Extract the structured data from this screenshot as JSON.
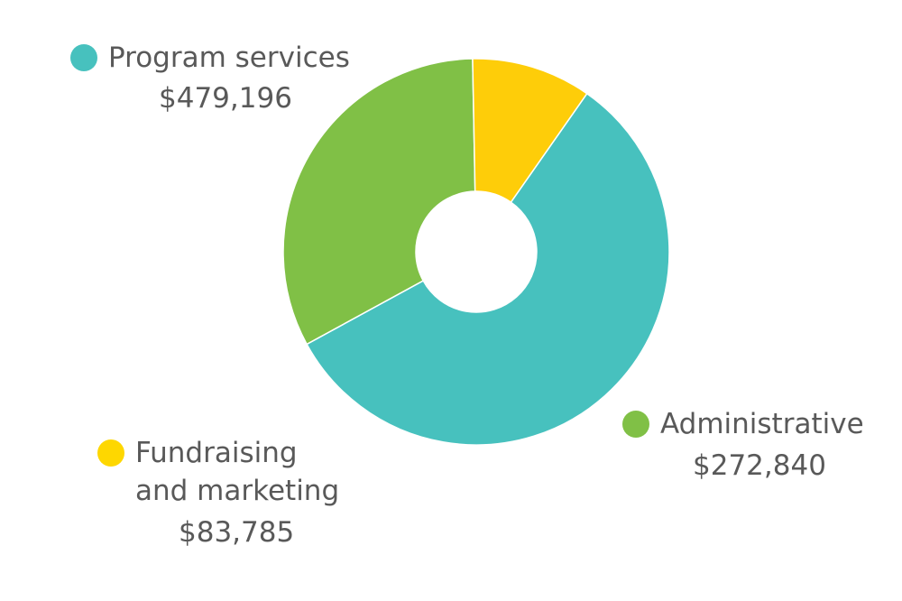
{
  "chart_data": {
    "type": "pie",
    "donut": true,
    "categories": [
      "Program services",
      "Administrative",
      "Fundraising\nand marketing"
    ],
    "values": [
      479196,
      272840,
      83785
    ],
    "value_labels": [
      "$479,196",
      "$272,840",
      "$83,785"
    ],
    "colors": [
      "#47C1BE",
      "#80C046",
      "#FECD09"
    ],
    "legend_dot_colors": [
      "#47C1BE",
      "#80C046",
      "#FED700"
    ],
    "title": "",
    "start_angle_deg": 35,
    "direction": "clockwise",
    "legend": "around"
  }
}
